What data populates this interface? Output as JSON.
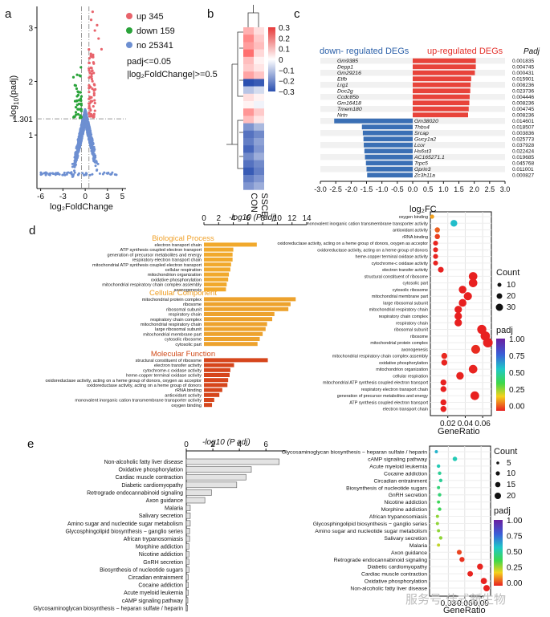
{
  "panels": {
    "a": {
      "letter": "a",
      "legend": [
        {
          "label": "up 345",
          "color": "#e8636b"
        },
        {
          "label": "down 159",
          "color": "#2aa33a"
        },
        {
          "label": "no 25341",
          "color": "#6d8fd1"
        }
      ],
      "threshold_text": [
        "padj<=0.05",
        "|log₂FoldChange|>=0.5"
      ],
      "ylabel_prefix": "-log",
      "ylabel_sub": "10",
      "ylabel_suffix": "(padj)",
      "xlabel": "log₂FoldChange",
      "xticks": [
        -6,
        -3,
        0,
        3,
        5
      ],
      "yticks": [
        1,
        2,
        3
      ],
      "extra_ytick": "1.301"
    },
    "b": {
      "letter": "b",
      "columns": [
        "CON",
        "SSCE"
      ],
      "scale_ticks": [
        "0.3",
        "0.2",
        "0.1",
        "0",
        "−0.1",
        "−0.2",
        "−0.3"
      ]
    },
    "c": {
      "letter": "c",
      "down_title": "down- regulated DEGs",
      "up_title": "up-regulated DEGs",
      "padj_header": "Padj",
      "xlabel": "log₂FC",
      "xticks": [
        "-3.0",
        "-2.5",
        "-2.0",
        "-1.5",
        "-1.0",
        "-0.5",
        "0.0",
        "0.5",
        "1.0",
        "1.5",
        "2.0",
        "2.5",
        "3.0"
      ]
    },
    "d": {
      "letter": "d",
      "axis_title": "-log10 (P adj)",
      "xticks": [
        "0",
        "2",
        "4",
        "6",
        "8",
        "10",
        "12",
        "14"
      ],
      "groups": [
        "Biological Process",
        "Cellular Component",
        "Molecular Function"
      ],
      "dot_xlabel": "GeneRatio",
      "dot_xticks": [
        "0.02",
        "0.04",
        "0.06"
      ],
      "count_title": "Count",
      "count_values": [
        "10",
        "20",
        "30"
      ],
      "padj_title": "padj",
      "padj_ticks": [
        "1.00",
        "0.75",
        "0.50",
        "0.25",
        "0.00"
      ]
    },
    "e": {
      "letter": "e",
      "axis_title": "-log10 (P adj)",
      "xticks": [
        "0",
        "2",
        "4",
        "6"
      ],
      "dot_xlabel": "GeneRatio",
      "dot_xticks": [
        "0.03",
        "0.06",
        "0.09"
      ],
      "count_title": "Count",
      "count_values": [
        "5",
        "10",
        "15",
        "20"
      ],
      "padj_title": "padj",
      "padj_ticks": [
        "1.00",
        "0.75",
        "0.50",
        "0.25",
        "0.00"
      ]
    }
  },
  "watermark": "服务号·佳式新生物",
  "chart_data": [
    {
      "type": "scatter",
      "title": "",
      "xlabel": "log₂FoldChange",
      "ylabel": "-log10(padj)",
      "xlim": [
        -6.5,
        5.5
      ],
      "ylim": [
        0,
        3.4
      ],
      "thresholds": {
        "padj_line": 1.301,
        "fc_lines": [
          -0.5,
          0.5
        ]
      },
      "series": [
        {
          "name": "up 345",
          "count": 345
        },
        {
          "name": "down 159",
          "count": 159
        },
        {
          "name": "no 25341",
          "count": 25341
        }
      ]
    },
    {
      "type": "heatmap",
      "columns": [
        "CON",
        "SSCE"
      ],
      "scale": [
        -0.3,
        0.3
      ],
      "values": [
        [
          0.12,
          0.05
        ],
        [
          0.18,
          0.08
        ],
        [
          0.15,
          0.1
        ],
        [
          0.22,
          0.06
        ],
        [
          0.1,
          0.02
        ],
        [
          0.08,
          0.04
        ],
        [
          0.14,
          0.09
        ],
        [
          -0.3,
          -0.28
        ],
        [
          -0.1,
          -0.06
        ],
        [
          0.05,
          0.02
        ],
        [
          0.02,
          -0.02
        ],
        [
          0.16,
          0.08
        ],
        [
          0.1,
          0.04
        ],
        [
          -0.18,
          -0.12
        ],
        [
          -0.24,
          -0.2
        ],
        [
          -0.22,
          -0.16
        ],
        [
          -0.26,
          -0.18
        ],
        [
          -0.2,
          -0.14
        ],
        [
          -0.24,
          -0.2
        ],
        [
          -0.28,
          -0.22
        ],
        [
          -0.22,
          -0.18
        ],
        [
          -0.18,
          -0.14
        ]
      ]
    },
    {
      "type": "bar",
      "title": "",
      "xlabel": "log₂FC",
      "xlim": [
        -3.0,
        3.0
      ],
      "categories": [
        "Gm9385",
        "Depp1",
        "Gm29216",
        "Etfb",
        "Lrg1",
        "Doc2g",
        "Ccdc85b",
        "Gm16418",
        "Tmem180",
        "Nrtn",
        "Gm38020",
        "Thbs4",
        "Srcap",
        "Gucy1a2",
        "Lcor",
        "Hs6st3",
        "AC165271.1",
        "Trpc5",
        "Gprin3",
        "Zc3h11a"
      ],
      "values": [
        2.05,
        2.05,
        2.02,
        1.9,
        1.88,
        1.87,
        1.85,
        1.84,
        1.82,
        1.8,
        -2.55,
        -1.65,
        -1.62,
        -1.6,
        -1.59,
        -1.57,
        -1.55,
        -1.52,
        -1.5,
        -1.48
      ],
      "padj": [
        "0.001835",
        "0.004745",
        "0.000431",
        "0.015901",
        "0.008236",
        "0.023736",
        "0.004446",
        "0.008236",
        "0.004745",
        "0.008236",
        "0.014601",
        "0.018507",
        "0.003836",
        "0.025773",
        "0.037928",
        "0.022424",
        "0.019685",
        "0.045768",
        "0.011001",
        "0.000827"
      ]
    },
    {
      "type": "bar",
      "title": "",
      "xlabel": "-log10 (P adj)",
      "xlim": [
        0,
        14
      ],
      "categories": [
        "electron transport chain",
        "ATP synthesis coupled electron transport",
        "generation of precursor metabolites and energy",
        "respiratory electron transport chain",
        "mitochondrial ATP synthesis coupled electron transport",
        "cellular respiration",
        "mitochondrion organization",
        "oxidative phosphorylation",
        "mitochondrial respiratory chain complex assembly",
        "axonogenesis",
        "mitochondrial protein complex",
        "ribosome",
        "ribosomal subunit",
        "respiratory chain",
        "respiratory chain complex",
        "mitochondrial respiratory chain",
        "large ribosomal subunit",
        "mitochondrial membrane part",
        "cytosolic ribosome",
        "cytosolic part",
        "structural constituent of ribosome",
        "electron transfer activity",
        "cytochrome-c oxidase activity",
        "heme-copper terminal oxidase activity",
        "oxidoreductase activity, acting on a heme group of donors, oxygen as acceptor",
        "oxidoreductase activity, acting on a heme group of donors",
        "rRNA binding",
        "antioxidant activity",
        "monovalent inorganic cation transmembrane transporter activity",
        "oxygen binding"
      ],
      "groups": [
        "Biological Process",
        "Biological Process",
        "Biological Process",
        "Biological Process",
        "Biological Process",
        "Biological Process",
        "Biological Process",
        "Biological Process",
        "Biological Process",
        "Biological Process",
        "Cellular Component",
        "Cellular Component",
        "Cellular Component",
        "Cellular Component",
        "Cellular Component",
        "Cellular Component",
        "Cellular Component",
        "Cellular Component",
        "Cellular Component",
        "Cellular Component",
        "Molecular Function",
        "Molecular Function",
        "Molecular Function",
        "Molecular Function",
        "Molecular Function",
        "Molecular Function",
        "Molecular Function",
        "Molecular Function",
        "Molecular Function",
        "Molecular Function"
      ],
      "values": [
        7.2,
        4.0,
        3.9,
        3.9,
        3.7,
        3.6,
        3.4,
        3.3,
        3.1,
        3.0,
        12.5,
        11.8,
        11.5,
        9.6,
        9.3,
        8.6,
        8.4,
        8.0,
        7.6,
        7.3,
        8.7,
        4.1,
        3.6,
        3.5,
        3.3,
        3.2,
        2.5,
        2.1,
        1.4,
        1.1
      ]
    },
    {
      "type": "scatter",
      "title": "",
      "xlabel": "GeneRatio",
      "xlim": [
        0.0,
        0.07
      ],
      "categories": [
        "oxygen binding",
        "monovalent inorganic cation transmembrane transporter activity",
        "antioxidant activity",
        "rRNA binding",
        "oxidoreductase activity, acting on a heme group of donors, oxygen as acceptor",
        "oxidoreductase activity, acting on a heme group of donors",
        "heme-copper terminal oxidase activity",
        "cytochrome-c oxidase activity",
        "electron transfer activity",
        "structural constituent of ribosome",
        "cytosolic part",
        "cytosolic ribosome",
        "mitochondrial membrane part",
        "large ribosomal subunit",
        "mitochondrial respiratory chain",
        "respiratory chain complex",
        "respiratory chain",
        "ribosomal subunit",
        "ribosome",
        "mitochondrial protein complex",
        "axonogenesis",
        "mitochondrial respiratory chain complex assembly",
        "oxidative phosphorylation",
        "mitochondrion organization",
        "cellular respiration",
        "mitochondrial ATP synthesis coupled electron transport",
        "respiratory electron transport chain",
        "generation of precursor metabolites and energy",
        "ATP synthesis coupled electron transport",
        "electron transport chain"
      ],
      "gene_ratio": [
        0.002,
        0.027,
        0.008,
        0.008,
        0.006,
        0.006,
        0.006,
        0.006,
        0.012,
        0.049,
        0.049,
        0.037,
        0.043,
        0.037,
        0.032,
        0.032,
        0.032,
        0.059,
        0.063,
        0.066,
        0.052,
        0.016,
        0.016,
        0.049,
        0.034,
        0.015,
        0.015,
        0.051,
        0.015,
        0.015
      ],
      "count": [
        2,
        12,
        5,
        5,
        4,
        4,
        4,
        4,
        7,
        24,
        24,
        18,
        21,
        18,
        16,
        16,
        16,
        29,
        31,
        33,
        26,
        8,
        8,
        24,
        17,
        8,
        8,
        25,
        8,
        8
      ],
      "padj": [
        0.012,
        0.05,
        0.006,
        0.003,
        0.0005,
        0.0006,
        0.0003,
        0.0003,
        0.0001,
        0.0,
        0.0,
        0.0,
        0.0,
        0.0,
        0.0,
        0.0,
        0.0,
        0.0,
        0.0,
        0.0,
        0.001,
        0.0008,
        0.0005,
        0.0004,
        0.0003,
        0.0002,
        0.0001,
        0.0001,
        0.0001,
        0.0001
      ]
    },
    {
      "type": "bar",
      "title": "",
      "xlabel": "-log10 (P adj)",
      "xlim": [
        0,
        7.5
      ],
      "categories": [
        "Non-alcoholic fatty liver disease",
        "Oxidative phosphorylation",
        "Cardiac muscle contraction",
        "Diabetic cardiomyopathy",
        "Retrograde endocannabinoid signaling",
        "Axon guidance",
        "Malaria",
        "Salivary secretion",
        "Amino sugar and nucleotide sugar metabolism",
        "Glycosphingolipid biosynthesis − ganglio series",
        "African trypanosomiasis",
        "Morphine addiction",
        "Nicotine addiction",
        "GnRH secretion",
        "Biosynthesis of nucleotide sugars",
        "Circadian entrainment",
        "Cocaine addiction",
        "Acute myeloid leukemia",
        "cAMP signaling pathway",
        "Glycosaminoglycan biosynthesis − heparan sulfate / heparin"
      ],
      "values": [
        7.0,
        4.9,
        4.5,
        3.8,
        1.9,
        1.4,
        0.3,
        0.3,
        0.3,
        0.25,
        0.25,
        0.2,
        0.2,
        0.2,
        0.2,
        0.15,
        0.15,
        0.15,
        0.12,
        0.1
      ]
    },
    {
      "type": "scatter",
      "title": "",
      "xlabel": "GeneRatio",
      "xlim": [
        0.0,
        0.1
      ],
      "categories": [
        "Glycosaminoglycan biosynthesis − heparan sulfate / heparin",
        "cAMP signaling pathway",
        "Acute myeloid leukemia",
        "Cocaine addiction",
        "Circadian entrainment",
        "Biosynthesis of nucleotide sugars",
        "GnRH secretion",
        "Nicotine addiction",
        "Morphine addiction",
        "African trypanosomiasis",
        "Glycosphingolipid biosynthesis − ganglio series",
        "Amino sugar and nucleotide sugar metabolism",
        "Salivary secretion",
        "Malaria",
        "Axon guidance",
        "Retrograde endocannabinoid signaling",
        "Diabetic cardiomyopathy",
        "Cardiac muscle contraction",
        "Oxidative phosphorylation",
        "Non-alcoholic fatty liver disease"
      ],
      "gene_ratio": [
        0.008,
        0.042,
        0.012,
        0.014,
        0.016,
        0.012,
        0.014,
        0.012,
        0.014,
        0.01,
        0.01,
        0.012,
        0.016,
        0.012,
        0.05,
        0.055,
        0.088,
        0.07,
        0.095,
        0.1
      ],
      "count": [
        2,
        7,
        3,
        3,
        3,
        2,
        3,
        2,
        3,
        2,
        2,
        2,
        3,
        2,
        9,
        10,
        16,
        13,
        18,
        19
      ],
      "padj": [
        0.62,
        0.55,
        0.55,
        0.5,
        0.5,
        0.45,
        0.45,
        0.4,
        0.4,
        0.3,
        0.3,
        0.3,
        0.3,
        0.25,
        0.04,
        0.02,
        0.005,
        0.004,
        0.002,
        0.001
      ]
    }
  ]
}
